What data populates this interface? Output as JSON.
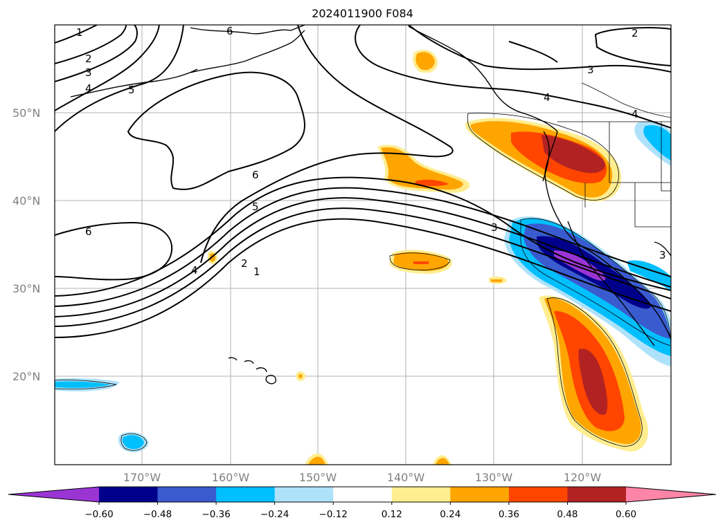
{
  "title": "2024011900 F084",
  "map": {
    "lat_labels": [
      "50°N",
      "40°N",
      "30°N",
      "20°N"
    ],
    "lon_labels": [
      "170°W",
      "160°W",
      "150°W",
      "140°W",
      "130°W",
      "120°W"
    ],
    "contour_labels": [
      "1",
      "2",
      "3",
      "4",
      "5",
      "6",
      "6",
      "5",
      "4",
      "2",
      "1",
      "6",
      "3",
      "2",
      "3",
      "4",
      "4",
      "3"
    ],
    "fill_colors": {
      "neg_lt_0_60": "#9a35d4",
      "neg_0_60": "#00008b",
      "neg_0_48": "#3a5bcf",
      "neg_0_36": "#00bfff",
      "neg_0_24": "#aee2fa",
      "neutral": "#ffffff",
      "pos_0_12": "#ffed8f",
      "pos_0_24": "#ffa500",
      "pos_0_36": "#ff4500",
      "pos_0_48": "#b22222",
      "pos_gt_0_60": "#ff85a8"
    }
  },
  "colorbar": {
    "tick_labels": [
      "−0.60",
      "−0.48",
      "−0.36",
      "−0.24",
      "−0.12",
      "0.12",
      "0.24",
      "0.36",
      "0.48",
      "0.60"
    ],
    "colors": [
      "#9a35d4",
      "#00008b",
      "#3a5bcf",
      "#00bfff",
      "#aee2fa",
      "#ffffff",
      "#ffed8f",
      "#ffa500",
      "#ff4500",
      "#b22222",
      "#ff85a8"
    ]
  }
}
